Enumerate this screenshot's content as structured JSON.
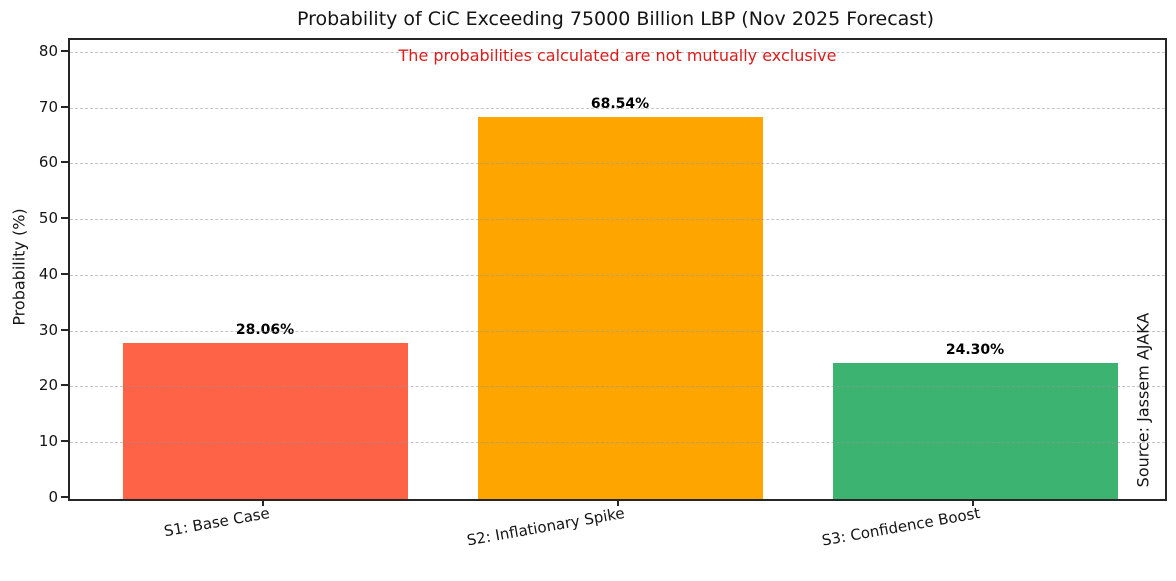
{
  "chart_data": {
    "type": "bar",
    "title": "Probability of CiC Exceeding 75000 Billion LBP (Nov 2025 Forecast)",
    "annotation": "The probabilities calculated are not mutually exclusive",
    "annotation_color": "#dd1c1c",
    "categories": [
      "S1: Base Case",
      "S2: Inflationary Spike",
      "S3: Confidence Boost"
    ],
    "values": [
      28.06,
      68.54,
      24.3
    ],
    "value_labels": [
      "28.06%",
      "68.54%",
      "24.30%"
    ],
    "bar_colors": [
      "#ff6347",
      "#ffa500",
      "#3cb371"
    ],
    "xlabel": "",
    "ylabel": "Probability (%)",
    "yticks": [
      0,
      10,
      20,
      30,
      40,
      50,
      60,
      70,
      80
    ],
    "ylim": [
      0,
      82.3
    ],
    "x_tick_rotation_deg": 10,
    "grid": "horizontal dashed",
    "grid_color": "#c9c9c9",
    "legend": "none",
    "source_note": "Source: Jassem AJAKA"
  }
}
